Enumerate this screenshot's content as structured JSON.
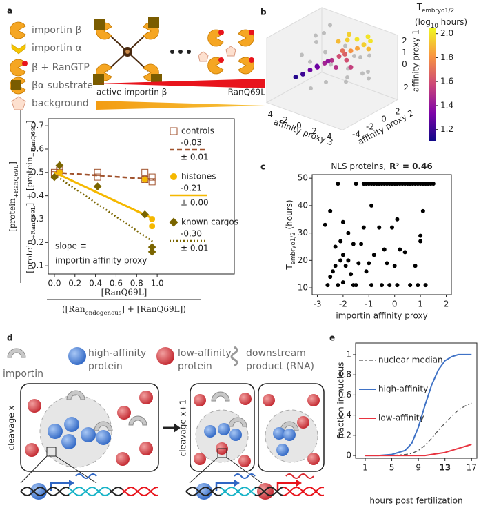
{
  "panel_labels": [
    "a",
    "b",
    "c",
    "d",
    "e"
  ],
  "schematic_a": {
    "legend": [
      "importin β",
      "importin α",
      "β + RanGTP",
      "βα substrate",
      "background"
    ],
    "gradient_labels": [
      "active importin β",
      "RanQ69L"
    ]
  },
  "schematic_d": {
    "legend": [
      [
        "importin"
      ],
      [
        "high-affinity",
        "protein"
      ],
      [
        "low-affinity",
        "protein"
      ],
      [
        "downstream",
        "product (RNA)"
      ]
    ],
    "stages": [
      "cleavage x",
      "cleavage x+1"
    ]
  },
  "chart_data": [
    {
      "type": "line-fit",
      "ylabel_numerator": [
        "[protein",
        "+RanQ69L",
        "]"
      ],
      "ylabel_denominator": [
        "[protein",
        "+RanQ69L",
        "] + [protein",
        "−RanQ69L",
        "]"
      ],
      "xlabel_numerator": "[RanQ69L]",
      "xlabel_denominator": [
        "([Ran",
        "endogenous",
        "] + [RanQ69L])"
      ],
      "annotation": [
        "slope ≡",
        "importin affinity proxy"
      ],
      "xlim": [
        -0.06,
        1.75
      ],
      "ylim": [
        0.065,
        0.73
      ],
      "xticks": [
        {
          "value": 0,
          "label": "0.0"
        },
        0.2,
        0.4,
        0.6,
        0.8,
        {
          "value": 1,
          "label": "1.0"
        }
      ],
      "yticks": [
        0.1,
        0.2,
        0.3,
        0.4,
        0.5,
        0.6,
        0.7
      ],
      "series": [
        {
          "name": "controls",
          "slope_text": "-0.03",
          "error_text": "± 0.01",
          "color": "#a0522d",
          "marker": "square",
          "fit_style": "dashed",
          "x": [
            0,
            0,
            0.05,
            0.05,
            0.42,
            0.42,
            0.88,
            0.88,
            0.95,
            0.95
          ],
          "values": [
            0.5,
            0.49,
            0.51,
            0.5,
            0.5,
            0.48,
            0.5,
            0.47,
            0.48,
            0.46
          ],
          "fit_x": [
            0,
            0.97
          ],
          "fit_values": [
            0.5,
            0.47
          ]
        },
        {
          "name": "histones",
          "slope_text": "-0.21",
          "error_text": "± 0.00",
          "color": "#f5b800",
          "marker": "circle",
          "fit_style": "solid",
          "x": [
            0.05,
            0.88,
            0.95,
            0.95
          ],
          "values": [
            0.5,
            0.47,
            0.27,
            0.3
          ],
          "fit_x": [
            0,
            0.97
          ],
          "fit_values": [
            0.5,
            0.3
          ]
        },
        {
          "name": "known cargos",
          "slope_text": "-0.30",
          "error_text": "± 0.01",
          "color": "#7a6500",
          "marker": "diamond",
          "fit_style": "dotted",
          "x": [
            0,
            0.05,
            0.42,
            0.88,
            0.95,
            0.95
          ],
          "values": [
            0.48,
            0.53,
            0.44,
            0.32,
            0.18,
            0.16
          ],
          "fit_x": [
            0,
            0.97
          ],
          "fit_values": [
            0.49,
            0.2
          ]
        }
      ]
    },
    {
      "type": "scatter3d",
      "xlabel": "affinity proxy 3",
      "ylabel": "affinity proxy 2",
      "zlabel": "affinity proxy 1",
      "xlim": [
        -5,
        5
      ],
      "ylim": [
        -5,
        3
      ],
      "zlim": [
        -3,
        2.5
      ],
      "xticks": [
        -4,
        -2,
        0,
        2,
        4
      ],
      "yticks": [
        -4,
        -2,
        0,
        2
      ],
      "zticks": [
        -2,
        0,
        1,
        2
      ],
      "colorbar_title": [
        "T",
        "embryo1/2"
      ],
      "colorbar_unit": [
        "(log",
        "10",
        " hours)"
      ],
      "colormap": "plasma",
      "clim": [
        1.1,
        2.05
      ],
      "cticks": [
        1.2,
        1.4,
        1.6,
        1.8,
        {
          "value": 2,
          "label": "2.0"
        }
      ],
      "background": {
        "color": "#bdbdbd",
        "x": [
          -4,
          -3,
          -2,
          -1,
          0,
          1,
          2,
          3,
          4,
          -3,
          -1,
          1,
          3,
          -2,
          0,
          2,
          -4,
          4,
          -2,
          2
        ],
        "y": [
          -1,
          0,
          1,
          2,
          -2,
          -3,
          0,
          1,
          -1,
          2,
          -3,
          2,
          -2,
          0,
          1,
          -1,
          1,
          0,
          -2,
          2
        ],
        "z": [
          0,
          1,
          -1,
          0.5,
          1.5,
          -0.5,
          1,
          -1,
          0.3,
          1.8,
          -1.5,
          0,
          0.8,
          2,
          -2,
          -0.5,
          1,
          1.5,
          0.2,
          -1
        ]
      },
      "points": {
        "x": [
          -3,
          -2.5,
          -2,
          -1.5,
          -1,
          -0.5,
          0,
          0.5,
          1,
          1.5,
          2,
          2.5,
          -1,
          0,
          1,
          2,
          -2,
          -1,
          0,
          1,
          2,
          3,
          0.5,
          -0.5
        ],
        "y": [
          -3,
          -2.5,
          -2,
          -1.5,
          -1,
          -0.5,
          0,
          0.3,
          0.6,
          1,
          1.4,
          1.8,
          1,
          1.2,
          1.5,
          2,
          -1,
          -0.5,
          0.5,
          0,
          -0.5,
          1,
          -1,
          2
        ],
        "z": [
          -1,
          -0.8,
          -0.5,
          -0.3,
          0,
          0.2,
          0.5,
          0.7,
          1,
          1.2,
          1.5,
          1.8,
          1.2,
          1.5,
          1.7,
          2,
          -0.5,
          0,
          0.8,
          0.4,
          0.2,
          1.5,
          0,
          1.6
        ],
        "c": [
          1.15,
          1.2,
          1.3,
          1.35,
          1.45,
          1.5,
          1.6,
          1.65,
          1.8,
          1.85,
          1.95,
          2,
          1.9,
          1.95,
          2,
          2,
          1.3,
          1.4,
          1.7,
          1.6,
          1.55,
          1.9,
          1.5,
          1.95
        ]
      }
    },
    {
      "type": "scatter",
      "title": "NLS proteins,",
      "title_stat": "R² = 0.46",
      "ylabel": [
        "T",
        "embryo1/2",
        " (hours)"
      ],
      "xlabel": "importin affinity proxy",
      "xlim": [
        -3.2,
        2.2
      ],
      "ylim": [
        7.5,
        51.3
      ],
      "xticks": [
        -3,
        -2,
        -1,
        0,
        1,
        2
      ],
      "yticks": [
        10,
        20,
        30,
        40,
        50
      ],
      "color": "#000000",
      "x": [
        -2.7,
        -2.6,
        -2.5,
        -2.5,
        -2.4,
        -2.3,
        -2.3,
        -2.2,
        -2.1,
        -2.1,
        -2,
        -2,
        -2,
        -1.9,
        -1.8,
        -1.8,
        -1.7,
        -1.6,
        -1.6,
        -1.5,
        -1.4,
        -1.3,
        -1.2,
        -1.1,
        -1,
        -0.9,
        -0.9,
        -0.8,
        -0.6,
        -0.5,
        -0.4,
        -0.3,
        -0.2,
        -0.1,
        0,
        0.1,
        0.1,
        0.2,
        0.4,
        0.6,
        0.8,
        0.9,
        1,
        1,
        1.1,
        1.2,
        -2.2,
        -1.5,
        -1.2,
        -1.1,
        -1,
        -0.9,
        -0.8,
        -0.7,
        -0.6,
        -0.5,
        -0.4,
        -0.3,
        -0.2,
        -0.1,
        0,
        0.1,
        0.2,
        0.3,
        0.4,
        0.5,
        0.6,
        0.7,
        0.8,
        0.9,
        1,
        1.1,
        1.2,
        1.3,
        1.4,
        1.5
      ],
      "values": [
        33,
        11,
        14,
        38,
        16,
        18,
        25,
        11,
        20,
        27,
        12,
        22,
        34,
        18,
        20,
        30,
        15,
        11,
        26,
        11,
        19,
        26,
        32,
        16,
        19,
        11,
        40,
        22,
        32,
        11,
        24,
        19,
        11,
        32,
        18,
        11,
        35,
        24,
        23,
        11,
        18,
        11,
        27,
        29,
        38,
        11,
        48,
        48,
        48,
        48,
        48,
        48,
        48,
        48,
        48,
        48,
        48,
        48,
        48,
        48,
        48,
        48,
        48,
        48,
        48,
        48,
        48,
        48,
        48,
        48,
        48,
        48,
        48,
        48,
        48,
        48
      ]
    },
    {
      "type": "line",
      "ylabel": "fraction in nucleus",
      "xlabel": "hours post fertilization",
      "xlim": [
        -0.45,
        17.8
      ],
      "ylim": [
        -0.027,
        1.116
      ],
      "xticks": [
        1,
        5,
        9,
        13,
        17
      ],
      "xtick_colors": [
        "#222222",
        "#222222",
        "#222222",
        "#e8141c",
        "#222222"
      ],
      "xtick_bold": [
        false,
        false,
        false,
        true,
        false
      ],
      "yticks": [
        0,
        0.2,
        0.4,
        0.6,
        0.8,
        1
      ],
      "x": [
        1,
        3,
        5,
        7,
        8,
        9,
        10,
        11,
        12,
        13,
        14,
        15,
        16,
        17
      ],
      "series": [
        {
          "name": "nuclear median",
          "color": "#555555",
          "style": "dashdot",
          "values": [
            0,
            0,
            0,
            0.01,
            0.02,
            0.05,
            0.1,
            0.17,
            0.25,
            0.32,
            0.39,
            0.45,
            0.49,
            0.52
          ]
        },
        {
          "name": "high-affinity",
          "color": "#3f72c6",
          "style": "solid",
          "values": [
            0,
            0,
            0.01,
            0.05,
            0.12,
            0.28,
            0.5,
            0.7,
            0.85,
            0.94,
            0.98,
            1,
            1,
            1
          ]
        },
        {
          "name": "low-affinity",
          "color": "#e8333f",
          "style": "solid",
          "values": [
            0,
            0,
            0,
            0,
            0,
            0,
            0,
            0.01,
            0.02,
            0.03,
            0.05,
            0.07,
            0.09,
            0.11
          ]
        }
      ]
    }
  ]
}
